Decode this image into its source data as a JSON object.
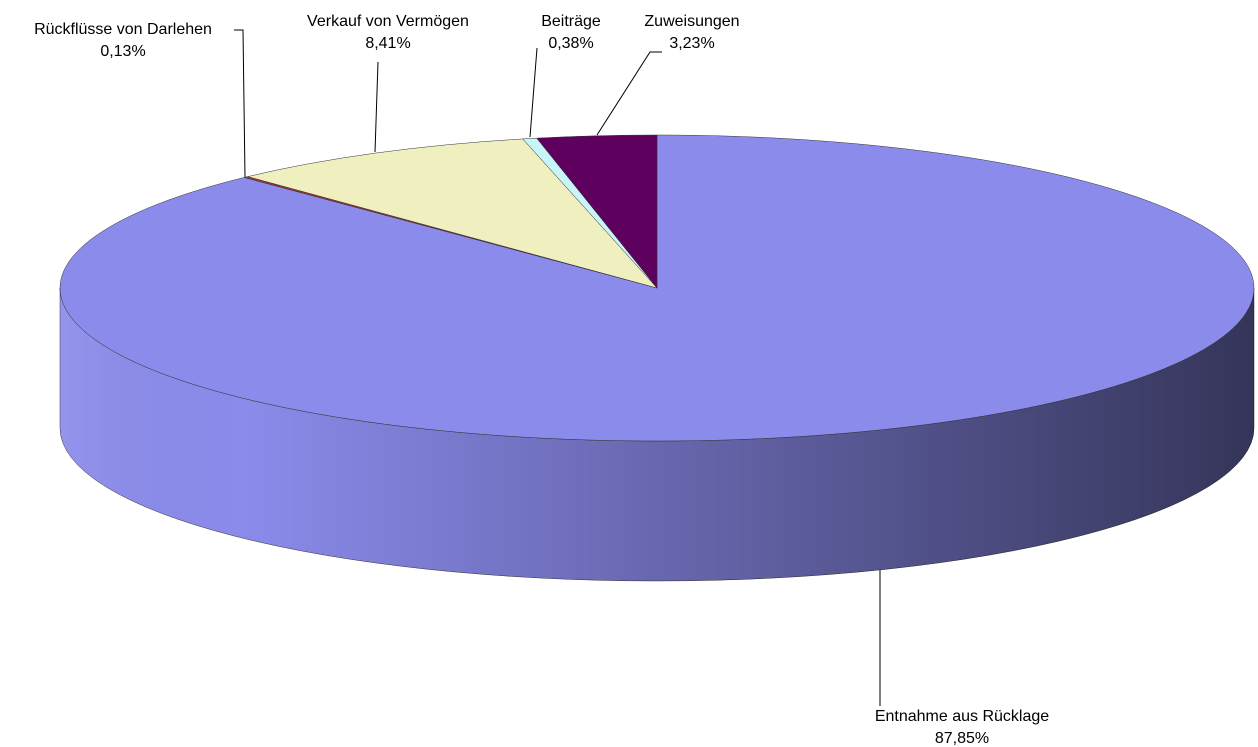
{
  "chart_data": {
    "type": "pie3d",
    "categories": [
      "Entnahme aus Rücklage",
      "Rückflüsse von Darlehen",
      "Verkauf von Vermögen",
      "Beiträge",
      "Zuweisungen"
    ],
    "values": [
      87.85,
      0.13,
      8.41,
      0.38,
      3.23
    ],
    "value_labels": [
      "87,85%",
      "0,13%",
      "8,41%",
      "0,38%",
      "3,23%"
    ],
    "colors": [
      "#8b8bec",
      "#a33232",
      "#efefc0",
      "#c8f5f7",
      "#5e005e"
    ]
  }
}
